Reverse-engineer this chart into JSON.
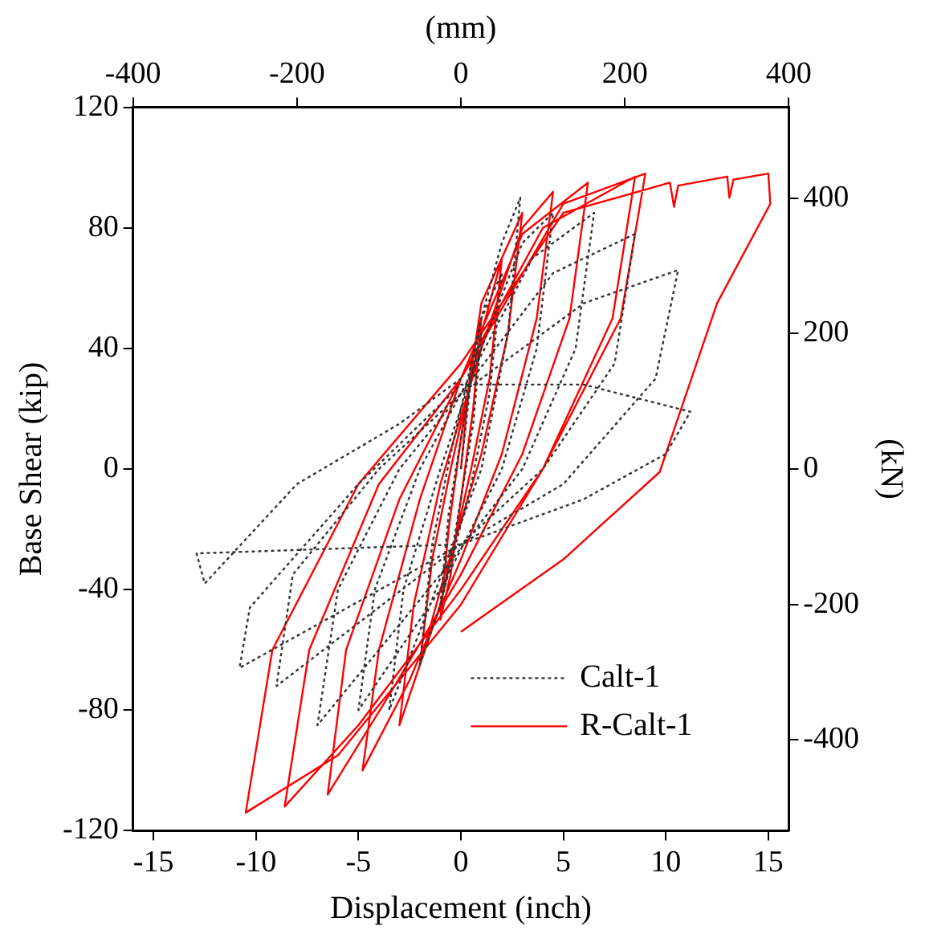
{
  "chart_data": {
    "type": "line",
    "xlabel": "Displacement (inch)",
    "ylabel": "Base Shear (kip)",
    "x2label": "(mm)",
    "y2label": "(kN)",
    "xlim": [
      -16,
      16
    ],
    "xticks": [
      -15,
      -10,
      -5,
      0,
      5,
      10,
      15
    ],
    "x2lim": [
      -400,
      400
    ],
    "x2ticks": [
      -400,
      -200,
      0,
      200,
      400
    ],
    "ylim": [
      -120,
      120
    ],
    "yticks": [
      -120,
      -80,
      -40,
      0,
      40,
      80,
      120
    ],
    "y2lim": [
      -534,
      534
    ],
    "y2ticks": [
      -400,
      -200,
      0,
      200,
      400
    ],
    "legend": "bottom right",
    "marker": "none",
    "series": [
      {
        "name": "Calt-1",
        "color": "#333333",
        "line_style": "dotted",
        "x": [
          0,
          0.5,
          1,
          0.6,
          0,
          -0.5,
          -1,
          -0.6,
          0,
          1,
          2,
          1.4,
          0.5,
          -1,
          -2,
          -1.4,
          -0.5,
          1,
          2,
          2.9,
          2.3,
          1,
          -1.5,
          -3.5,
          -2.8,
          -1,
          1,
          3,
          4.5,
          3.7,
          2,
          -1,
          -5,
          -4.2,
          -2,
          0,
          3.5,
          6.5,
          5.6,
          3,
          -1,
          -7,
          -6,
          -3,
          0,
          4.5,
          8.5,
          7.5,
          4,
          0,
          -9,
          -8.2,
          -4,
          0,
          6,
          10.6,
          9.5,
          5,
          0,
          -10.8,
          -10.3,
          -5,
          0,
          6,
          11.2,
          10,
          6,
          0,
          -12.9,
          -12.5,
          -8,
          -3,
          0
        ],
        "values": [
          0,
          30,
          45,
          15,
          -10,
          -30,
          -45,
          -15,
          10,
          50,
          65,
          25,
          -5,
          -45,
          -65,
          -25,
          5,
          50,
          75,
          90,
          45,
          0,
          -45,
          -80,
          -40,
          0,
          40,
          75,
          85,
          40,
          0,
          -40,
          -80,
          -40,
          0,
          25,
          70,
          85,
          40,
          0,
          -35,
          -85,
          -40,
          0,
          25,
          65,
          78,
          35,
          0,
          -25,
          -72,
          -35,
          0,
          25,
          55,
          66,
          30,
          -5,
          -25,
          -66,
          -46,
          -5,
          28,
          28,
          19,
          5,
          -10,
          -25,
          -28,
          -38,
          -5,
          15,
          30
        ]
      },
      {
        "name": "R-Calt-1",
        "color": "#ff0000",
        "line_style": "solid",
        "x": [
          0,
          0.5,
          1,
          0.6,
          0,
          -0.5,
          -1,
          -0.6,
          0,
          1,
          2,
          1.4,
          0.5,
          -1,
          -2,
          -1.4,
          -0.5,
          1,
          2,
          3,
          2.3,
          1,
          -1,
          -2,
          -3,
          -2.3,
          -1,
          1,
          3,
          4.5,
          3.7,
          2,
          0,
          -2.5,
          -4.8,
          -4,
          -2,
          0,
          3,
          6.2,
          5.3,
          3,
          0,
          -3.5,
          -6.5,
          -5.6,
          -3,
          0,
          4,
          8.5,
          7.4,
          4,
          0,
          -5,
          -8.6,
          -7.4,
          -4,
          0,
          5,
          9,
          7.8,
          4,
          0,
          -6,
          -10.5,
          -9.2,
          -5,
          0,
          5,
          10.2,
          10.4,
          10.6,
          13,
          13.1,
          13.3,
          15,
          15.1,
          12.5,
          9.7,
          5,
          0
        ],
        "values": [
          0,
          35,
          50,
          20,
          -10,
          -35,
          -50,
          -20,
          10,
          55,
          70,
          30,
          0,
          -45,
          -65,
          -30,
          0,
          45,
          70,
          85,
          45,
          5,
          -40,
          -65,
          -85,
          -45,
          -5,
          40,
          80,
          92,
          50,
          5,
          -30,
          -70,
          -100,
          -60,
          -10,
          30,
          78,
          95,
          50,
          5,
          -35,
          -75,
          -108,
          -60,
          -10,
          30,
          80,
          97,
          50,
          0,
          -40,
          -85,
          -112,
          -60,
          -5,
          30,
          88,
          98,
          50,
          0,
          -45,
          -95,
          -114,
          -60,
          -5,
          35,
          85,
          95,
          87,
          94,
          97,
          90,
          96,
          98,
          88,
          55,
          -1,
          -30,
          -54
        ]
      }
    ]
  }
}
